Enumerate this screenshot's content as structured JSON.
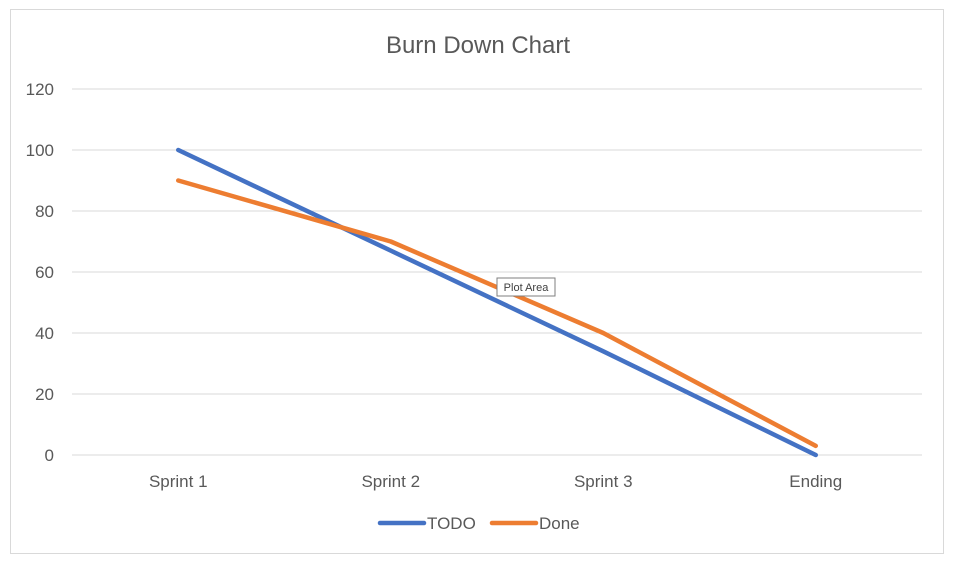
{
  "chart_data": {
    "type": "line",
    "title": "Burn Down Chart",
    "xlabel": "",
    "ylabel": "",
    "categories": [
      "Sprint 1",
      "Sprint 2",
      "Sprint 3",
      "Ending"
    ],
    "ylim": [
      0,
      120
    ],
    "yticks": [
      0,
      20,
      40,
      60,
      80,
      100,
      120
    ],
    "grid": true,
    "legend_position": "bottom",
    "series": [
      {
        "name": "TODO",
        "values": [
          100,
          67,
          34,
          0
        ],
        "color": "#4472C4"
      },
      {
        "name": "Done",
        "values": [
          90,
          70,
          40,
          3
        ],
        "color": "#ED7D31"
      }
    ]
  },
  "tooltip": {
    "text": "Plot Area"
  }
}
